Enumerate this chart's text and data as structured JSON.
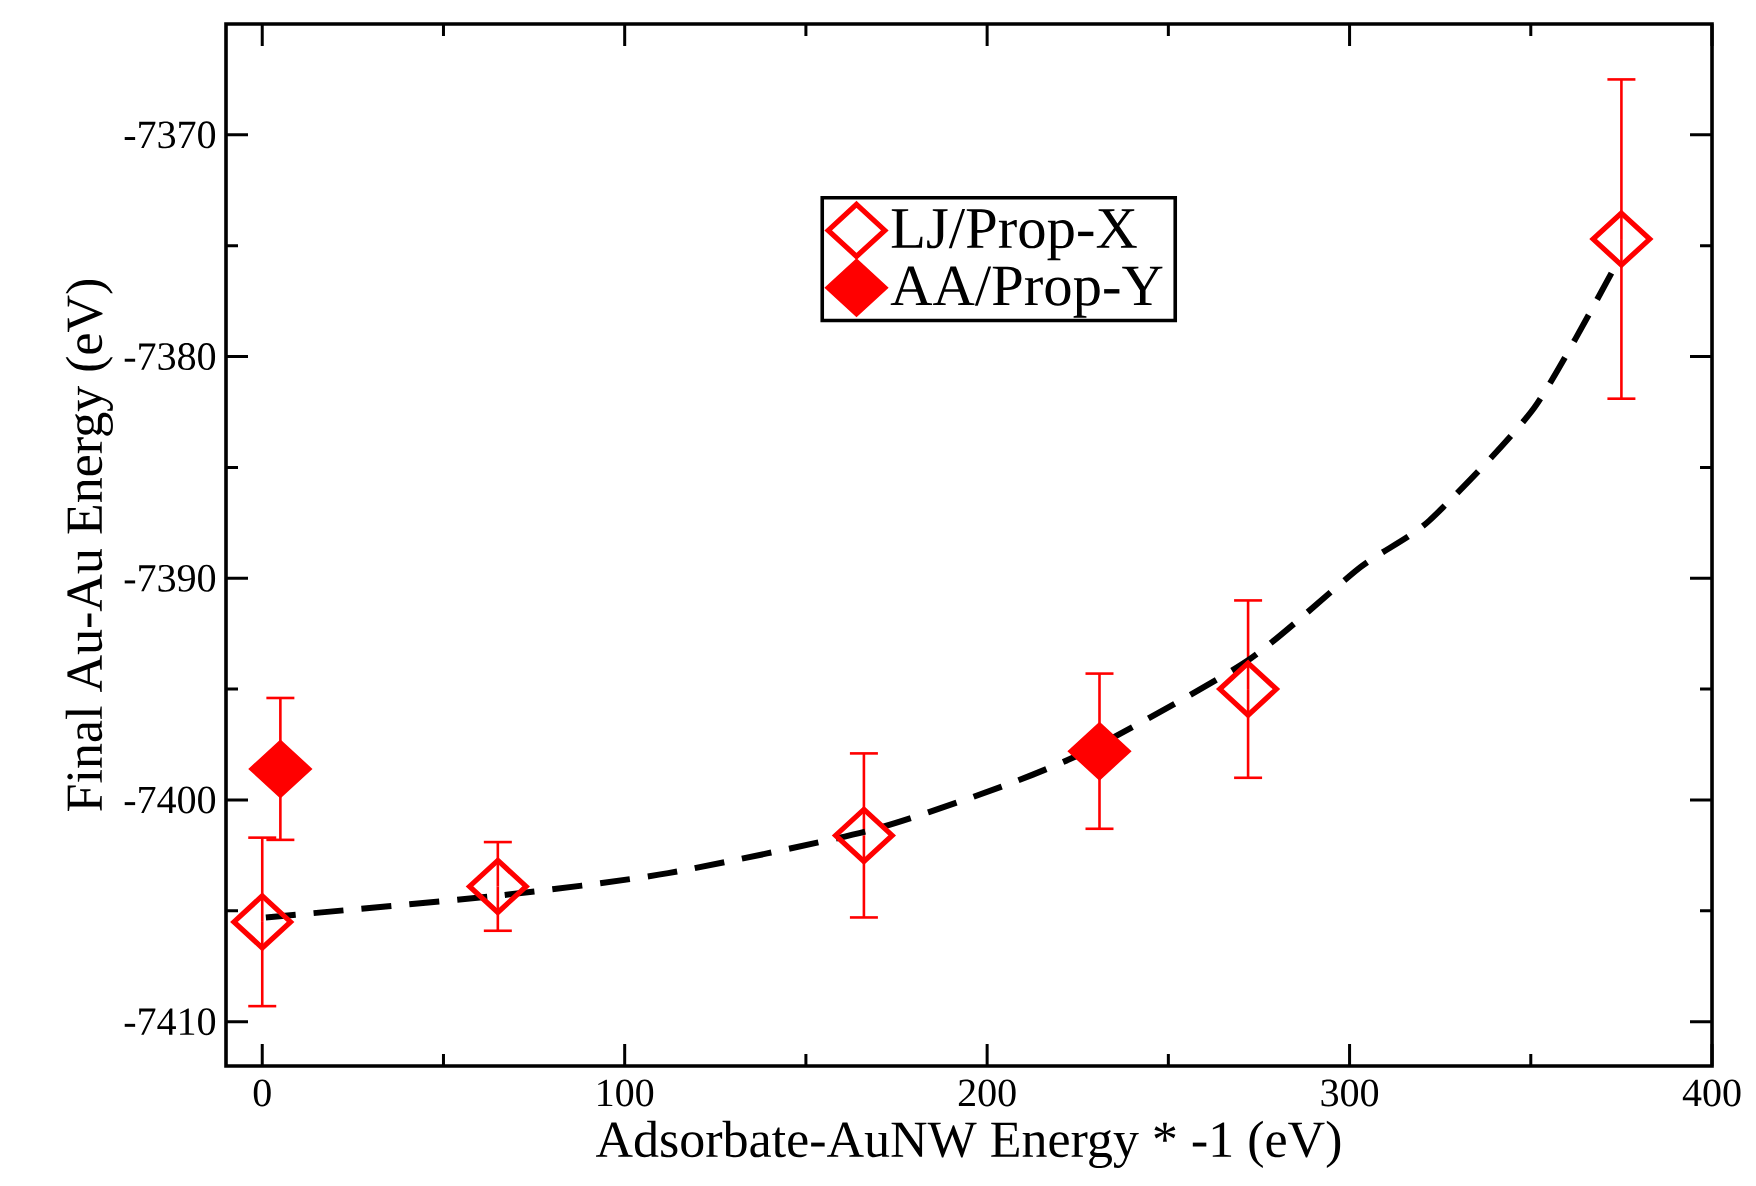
{
  "chart_data": {
    "type": "scatter",
    "xlabel": "Adsorbate-AuNW Energy * -1 (eV)",
    "ylabel": "Final Au-Au Energy (eV)",
    "xlim": [
      -10,
      400
    ],
    "xticks": [
      0,
      100,
      200,
      300,
      400
    ],
    "ylim": [
      -7412,
      -7365
    ],
    "yticks": [
      -7410,
      -7400,
      -7390,
      -7380,
      -7370
    ],
    "grid": false,
    "legend": "top",
    "marker": "diamond",
    "series": [
      {
        "name": "LJ/Prop-X",
        "color": "#ff0000",
        "x": [
          0,
          65,
          166,
          272,
          375
        ],
        "values": [
          -7405.5,
          -7403.9,
          -7401.6,
          -7395.0,
          -7374.7
        ],
        "errors": [
          3.8,
          2.0,
          3.7,
          4.0,
          7.2
        ]
      },
      {
        "name": "AA/Prop-Y",
        "color": "#ff0000",
        "x": [
          5,
          231
        ],
        "values": [
          -7398.6,
          -7397.8
        ],
        "errors": [
          3.2,
          3.5
        ]
      },
      {
        "type": "line",
        "color": "#000000",
        "line_style": "dashed",
        "marker": "none",
        "x": [
          1,
          66,
          112,
          167,
          204,
          230,
          272,
          303,
          322,
          351,
          374
        ],
        "values": [
          -7405.3,
          -7404.3,
          -7403.3,
          -7401.4,
          -7399.4,
          -7397.6,
          -7393.7,
          -7389.5,
          -7387.4,
          -7382.3,
          -7375.7
        ]
      }
    ]
  }
}
